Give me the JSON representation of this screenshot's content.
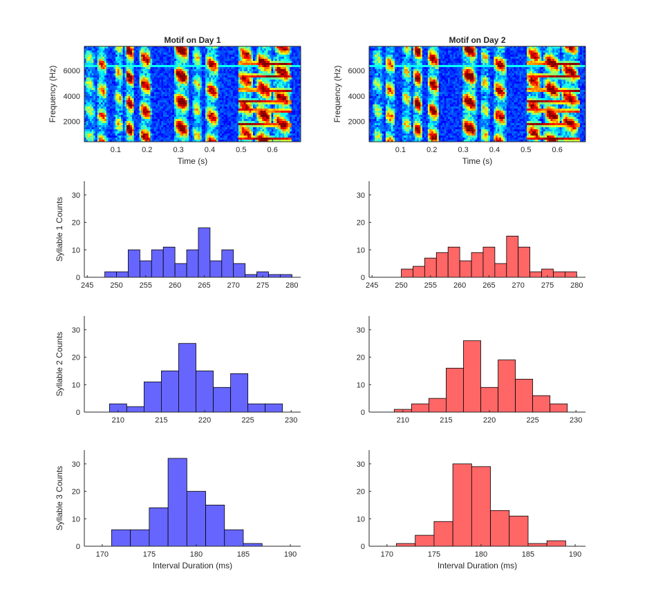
{
  "colors": {
    "day1": "#6666ff",
    "day2": "#ff6666",
    "axis": "#262626"
  },
  "chart_data": [
    {
      "type": "heatmap",
      "title": "Motif on Day 1",
      "xlabel": "Time (s)",
      "ylabel": "Frequency (Hz)",
      "xlim": [
        0,
        0.69
      ],
      "ylim": [
        400,
        7900
      ],
      "xticks": [
        "0.1",
        "0.2",
        "0.3",
        "0.4",
        "0.5",
        "0.6"
      ],
      "yticks": [
        "2000",
        "4000",
        "6000"
      ],
      "colormap": "jet"
    },
    {
      "type": "heatmap",
      "title": "Motif on Day 2",
      "xlabel": "Time (s)",
      "ylabel": "Frequency (Hz)",
      "xlim": [
        0,
        0.69
      ],
      "ylim": [
        400,
        7900
      ],
      "xticks": [
        "0.1",
        "0.2",
        "0.3",
        "0.4",
        "0.5",
        "0.6"
      ],
      "yticks": [
        "2000",
        "4000",
        "6000"
      ],
      "colormap": "jet"
    },
    {
      "type": "bar",
      "ylabel": "Syllable 1 Counts",
      "bin_edges": [
        246,
        248,
        250,
        252,
        254,
        256,
        258,
        260,
        262,
        264,
        266,
        268,
        270,
        272,
        274,
        276,
        278,
        280
      ],
      "values": [
        0,
        2,
        2,
        10,
        6,
        10,
        11,
        5,
        10,
        18,
        6,
        10,
        5,
        1,
        2,
        1,
        1
      ],
      "xlim": [
        244.5,
        281.5
      ],
      "ylim": [
        0,
        35
      ],
      "xticks": [
        "245",
        "250",
        "255",
        "260",
        "265",
        "270",
        "275",
        "280"
      ],
      "yticks": [
        "0",
        "10",
        "20",
        "30"
      ],
      "color": "#6666ff"
    },
    {
      "type": "bar",
      "bin_edges": [
        246,
        248,
        250,
        252,
        254,
        256,
        258,
        260,
        262,
        264,
        266,
        268,
        270,
        272,
        274,
        276,
        278,
        280
      ],
      "values": [
        0,
        0,
        3,
        4,
        7,
        9,
        11,
        6,
        9,
        11,
        5,
        15,
        11,
        2,
        3,
        2,
        2
      ],
      "xlim": [
        244.5,
        281.5
      ],
      "ylim": [
        0,
        35
      ],
      "xticks": [
        "245",
        "250",
        "255",
        "260",
        "265",
        "270",
        "275",
        "280"
      ],
      "yticks": [
        "0",
        "10",
        "20",
        "30"
      ],
      "color": "#ff6666"
    },
    {
      "type": "bar",
      "ylabel": "Syllable 2 Counts",
      "bin_edges": [
        207,
        209,
        211,
        213,
        215,
        217,
        219,
        221,
        223,
        225,
        227,
        229
      ],
      "values": [
        0,
        3,
        2,
        11,
        15,
        25,
        15,
        9,
        14,
        3,
        3
      ],
      "xlim": [
        206.1,
        231.1
      ],
      "ylim": [
        0,
        35
      ],
      "xticks": [
        "210",
        "215",
        "220",
        "225",
        "230"
      ],
      "yticks": [
        "0",
        "10",
        "20",
        "30"
      ],
      "color": "#6666ff"
    },
    {
      "type": "bar",
      "bin_edges": [
        207,
        209,
        211,
        213,
        215,
        217,
        219,
        221,
        223,
        225,
        227,
        229
      ],
      "values": [
        0,
        1,
        3,
        5,
        16,
        26,
        9,
        19,
        12,
        6,
        3
      ],
      "xlim": [
        206.1,
        231.1
      ],
      "ylim": [
        0,
        35
      ],
      "xticks": [
        "210",
        "215",
        "220",
        "225",
        "230"
      ],
      "yticks": [
        "0",
        "10",
        "20",
        "30"
      ],
      "color": "#ff6666"
    },
    {
      "type": "bar",
      "ylabel": "Syllable 3 Counts",
      "xlabel": "Interval Duration (ms)",
      "bin_edges": [
        169,
        171,
        173,
        175,
        177,
        179,
        181,
        183,
        185,
        187,
        189
      ],
      "values": [
        0,
        6,
        6,
        14,
        32,
        20,
        15,
        6,
        1,
        0
      ],
      "xlim": [
        168.1,
        191.1
      ],
      "ylim": [
        0,
        35
      ],
      "xticks": [
        "170",
        "175",
        "180",
        "185",
        "190"
      ],
      "yticks": [
        "0",
        "10",
        "20",
        "30"
      ],
      "color": "#6666ff"
    },
    {
      "type": "bar",
      "xlabel": "Interval Duration (ms)",
      "bin_edges": [
        169,
        171,
        173,
        175,
        177,
        179,
        181,
        183,
        185,
        187,
        189
      ],
      "values": [
        0,
        1,
        4,
        9,
        30,
        29,
        13,
        11,
        1,
        2
      ],
      "xlim": [
        168.1,
        191.1
      ],
      "ylim": [
        0,
        35
      ],
      "xticks": [
        "170",
        "175",
        "180",
        "185",
        "190"
      ],
      "yticks": [
        "0",
        "10",
        "20",
        "30"
      ],
      "color": "#ff6666"
    }
  ]
}
